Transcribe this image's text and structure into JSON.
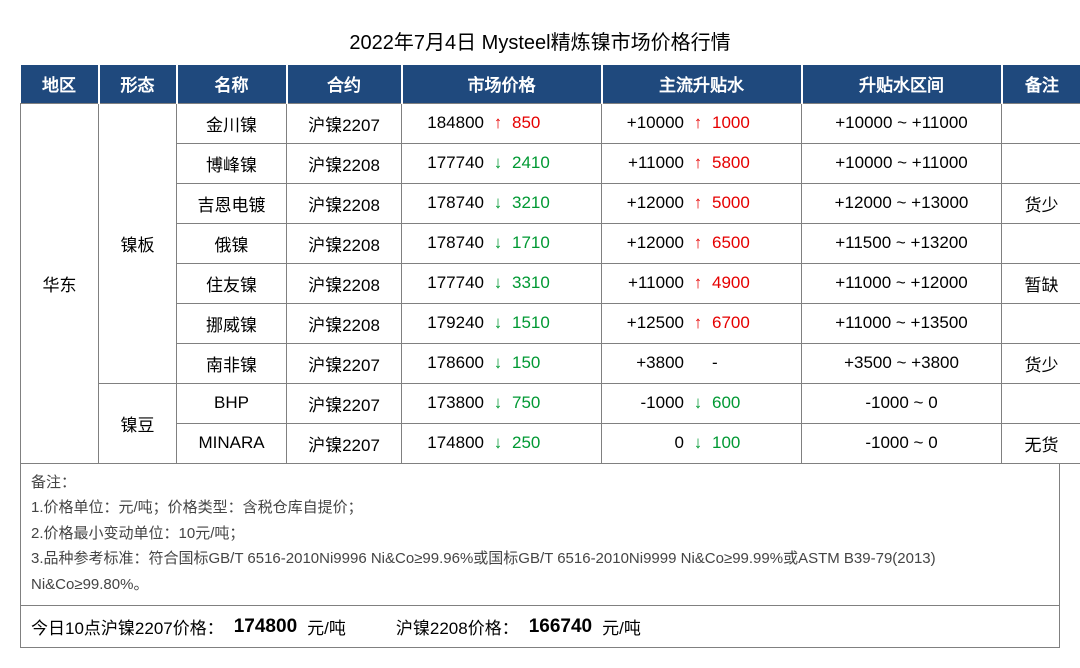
{
  "title": "2022年7月4日 Mysteel精炼镍市场价格行情",
  "columns": [
    "地区",
    "形态",
    "名称",
    "合约",
    "市场价格",
    "主流升贴水",
    "升贴水区间",
    "备注"
  ],
  "region": "华东",
  "groups": [
    {
      "form": "镍板",
      "rows": [
        {
          "name": "金川镍",
          "contract": "沪镍2207",
          "price": "184800",
          "pdir": "up",
          "pchg": "850",
          "premium": "+10000",
          "mdir": "up",
          "mchg": "1000",
          "range": "+10000 ~ +11000",
          "remark": ""
        },
        {
          "name": "博峰镍",
          "contract": "沪镍2208",
          "price": "177740",
          "pdir": "down",
          "pchg": "2410",
          "premium": "+11000",
          "mdir": "up",
          "mchg": "5800",
          "range": "+10000 ~ +11000",
          "remark": ""
        },
        {
          "name": "吉恩电镀",
          "contract": "沪镍2208",
          "price": "178740",
          "pdir": "down",
          "pchg": "3210",
          "premium": "+12000",
          "mdir": "up",
          "mchg": "5000",
          "range": "+12000 ~ +13000",
          "remark": "货少"
        },
        {
          "name": "俄镍",
          "contract": "沪镍2208",
          "price": "178740",
          "pdir": "down",
          "pchg": "1710",
          "premium": "+12000",
          "mdir": "up",
          "mchg": "6500",
          "range": "+11500 ~ +13200",
          "remark": ""
        },
        {
          "name": "住友镍",
          "contract": "沪镍2208",
          "price": "177740",
          "pdir": "down",
          "pchg": "3310",
          "premium": "+11000",
          "mdir": "up",
          "mchg": "4900",
          "range": "+11000 ~ +12000",
          "remark": "暂缺"
        },
        {
          "name": "挪威镍",
          "contract": "沪镍2208",
          "price": "179240",
          "pdir": "down",
          "pchg": "1510",
          "premium": "+12500",
          "mdir": "up",
          "mchg": "6700",
          "range": "+11000 ~ +13500",
          "remark": ""
        },
        {
          "name": "南非镍",
          "contract": "沪镍2207",
          "price": "178600",
          "pdir": "down",
          "pchg": "150",
          "premium": "+3800",
          "mdir": "none",
          "mchg": "-",
          "range": "+3500 ~ +3800",
          "remark": "货少"
        }
      ]
    },
    {
      "form": "镍豆",
      "rows": [
        {
          "name": "BHP",
          "contract": "沪镍2207",
          "price": "173800",
          "pdir": "down",
          "pchg": "750",
          "premium": "-1000",
          "mdir": "down",
          "mchg": "600",
          "range": "-1000 ~ 0",
          "remark": ""
        },
        {
          "name": "MINARA",
          "contract": "沪镍2207",
          "price": "174800",
          "pdir": "down",
          "pchg": "250",
          "premium": "0",
          "mdir": "down",
          "mchg": "100",
          "range": "-1000 ~ 0",
          "remark": "无货"
        }
      ]
    }
  ],
  "notes": {
    "heading": "备注：",
    "lines": [
      "1.价格单位：元/吨；价格类型：含税仓库自提价；",
      "2.价格最小变动单位：10元/吨；",
      "3.品种参考标准：符合国标GB/T 6516-2010Ni9996 Ni&Co≥99.96%或国标GB/T 6516-2010Ni9999 Ni&Co≥99.99%或ASTM B39-79(2013) Ni&Co≥99.80%。"
    ]
  },
  "footer": {
    "label1": "今日10点沪镍2207价格：",
    "price1": "174800",
    "unit": "元/吨",
    "label2": "沪镍2208价格：",
    "price2": "166740"
  },
  "arrows": {
    "up": "↑",
    "down": "↓",
    "none": ""
  }
}
